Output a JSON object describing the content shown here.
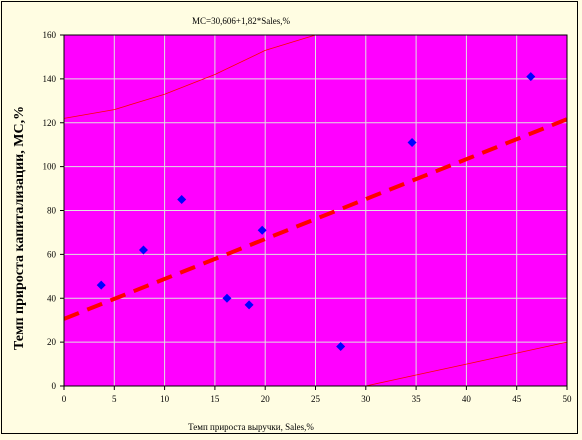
{
  "chart_data": {
    "type": "scatter",
    "title": "MC=30,606+1,82*Sales,%",
    "xlabel": "Темп прироста выручки, Sales,%",
    "ylabel": "Темп прироста капитализации, MC,%",
    "xlim": [
      0,
      50
    ],
    "ylim": [
      0,
      160
    ],
    "x_ticks": [
      "0",
      "5",
      "10",
      "15",
      "20",
      "25",
      "30",
      "35",
      "40",
      "45",
      "50"
    ],
    "y_ticks": [
      "0",
      "20",
      "40",
      "60",
      "80",
      "100",
      "120",
      "140",
      "160"
    ],
    "grid": true,
    "series": [
      {
        "points": [
          {
            "x": 3.7,
            "y": 46
          },
          {
            "x": 7.9,
            "y": 62
          },
          {
            "x": 11.7,
            "y": 85
          },
          {
            "x": 16.2,
            "y": 40
          },
          {
            "x": 18.4,
            "y": 37
          },
          {
            "x": 19.7,
            "y": 71
          },
          {
            "x": 27.5,
            "y": 18
          },
          {
            "x": 34.6,
            "y": 111
          },
          {
            "x": 46.4,
            "y": 141
          }
        ]
      }
    ],
    "regression": {
      "intercept": 30.606,
      "slope": 1.82
    },
    "confidence_band": {
      "upper": [
        [
          0,
          122
        ],
        [
          5,
          126
        ],
        [
          10,
          133
        ],
        [
          15,
          142
        ],
        [
          20,
          153
        ],
        [
          25,
          160
        ]
      ],
      "lower": [
        [
          30,
          0
        ],
        [
          35,
          5
        ],
        [
          40,
          10
        ],
        [
          45,
          15
        ],
        [
          50,
          20
        ]
      ]
    },
    "colors": {
      "background": "#fffde2",
      "plot_area": "#ff00ff",
      "grid": "#e0e0e0",
      "points": "#0000ff",
      "regression_line": "#ff0000",
      "band": "#ff0000"
    }
  }
}
